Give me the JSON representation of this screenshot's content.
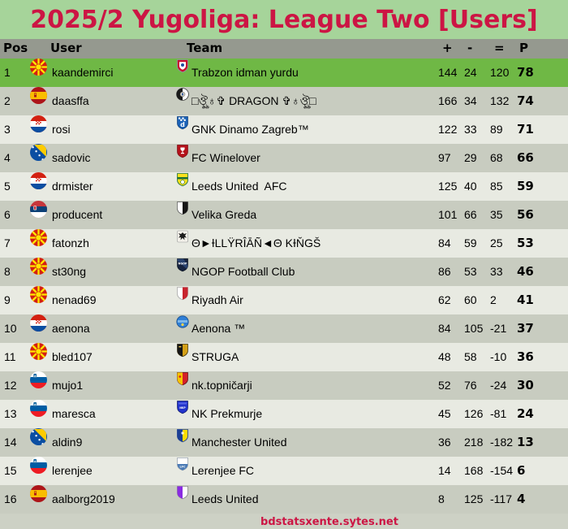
{
  "title": "2025/2 Yugoliga: League Two [Users]",
  "footer": {
    "link_text": "bdstatsxente.sytes.net"
  },
  "colors": {
    "title_text": "#cc1544",
    "title_background": "#a6d49a",
    "header_background": "#95998f",
    "highlight_row": "#6fb845",
    "row_dark": "#c8ccc0",
    "row_light": "#e8eae2",
    "page_background": "#cdd1c5",
    "footer_text": "#cc1544"
  },
  "table": {
    "headers": {
      "pos": "Pos",
      "user": "User",
      "team": "Team",
      "plus": "+",
      "minus": "-",
      "equals": "=",
      "points": "P"
    },
    "rows": [
      {
        "pos": 1,
        "user": "kaandemirci",
        "flag": "macedonia-flag-icon",
        "team": "Trabzon idman yurdu",
        "badge": "trabzon-badge-icon",
        "plus": 144,
        "minus": 24,
        "equals": 120,
        "points": 78,
        "highlight": true
      },
      {
        "pos": 2,
        "user": "daasffa",
        "flag": "spain-flag-icon",
        "team": "□ঔৣ♁✞ DRAGON ✞♁ঔৣ□",
        "badge": "dragon-badge-icon",
        "plus": 166,
        "minus": 34,
        "equals": 132,
        "points": 74,
        "highlight": false
      },
      {
        "pos": 3,
        "user": "rosi",
        "flag": "croatia-flag-icon",
        "team": "GNK Dinamo Zagreb™",
        "badge": "dinamo-badge-icon",
        "plus": 122,
        "minus": 33,
        "equals": 89,
        "points": 71,
        "highlight": false
      },
      {
        "pos": 4,
        "user": "sadovic",
        "flag": "bosnia-flag-icon",
        "team": "FC Winelover",
        "badge": "winelover-badge-icon",
        "plus": 97,
        "minus": 29,
        "equals": 68,
        "points": 66,
        "highlight": false
      },
      {
        "pos": 5,
        "user": "drmister",
        "flag": "croatia-flag-icon",
        "team": "Leeds United  AFC",
        "badge": "leeds-afc-badge-icon",
        "plus": 125,
        "minus": 40,
        "equals": 85,
        "points": 59,
        "highlight": false
      },
      {
        "pos": 6,
        "user": "producent",
        "flag": "serbia-flag-icon",
        "team": "Velika Greda",
        "badge": "velika-badge-icon",
        "plus": 101,
        "minus": 66,
        "equals": 35,
        "points": 56,
        "highlight": false
      },
      {
        "pos": 7,
        "user": "fatonzh",
        "flag": "macedonia-flag-icon",
        "team": "Θ►ƗLLŸRÎĀÑ◄Θ KƗŇGŠ",
        "badge": "illyrian-badge-icon",
        "plus": 84,
        "minus": 59,
        "equals": 25,
        "points": 53,
        "highlight": false
      },
      {
        "pos": 8,
        "user": "st30ng",
        "flag": "macedonia-flag-icon",
        "team": "NGOP Football Club",
        "badge": "ngop-badge-icon",
        "plus": 86,
        "minus": 53,
        "equals": 33,
        "points": 46,
        "highlight": false
      },
      {
        "pos": 9,
        "user": "nenad69",
        "flag": "macedonia-flag-icon",
        "team": "Riyadh Air",
        "badge": "riyadh-badge-icon",
        "plus": 62,
        "minus": 60,
        "equals": 2,
        "points": 41,
        "highlight": false
      },
      {
        "pos": 10,
        "user": "aenona",
        "flag": "croatia-flag-icon",
        "team": "Aenona ™",
        "badge": "aenona-badge-icon",
        "plus": 84,
        "minus": 105,
        "equals": -21,
        "points": 37,
        "highlight": false
      },
      {
        "pos": 11,
        "user": "bled107",
        "flag": "macedonia-flag-icon",
        "team": "STRUGA",
        "badge": "struga-badge-icon",
        "plus": 48,
        "minus": 58,
        "equals": -10,
        "points": 36,
        "highlight": false
      },
      {
        "pos": 12,
        "user": "mujo1",
        "flag": "slovenia-flag-icon",
        "team": "nk.topničarji",
        "badge": "topnicarji-badge-icon",
        "plus": 52,
        "minus": 76,
        "equals": -24,
        "points": 30,
        "highlight": false
      },
      {
        "pos": 13,
        "user": "maresca",
        "flag": "slovenia-flag-icon",
        "team": "NK Prekmurje",
        "badge": "prekmurje-badge-icon",
        "plus": 45,
        "minus": 126,
        "equals": -81,
        "points": 24,
        "highlight": false
      },
      {
        "pos": 14,
        "user": "aldin9",
        "flag": "bosnia-flag-icon",
        "team": "Manchester United",
        "badge": "manutd-badge-icon",
        "plus": 36,
        "minus": 218,
        "equals": -182,
        "points": 13,
        "highlight": false
      },
      {
        "pos": 15,
        "user": "lerenjee",
        "flag": "slovenia-flag-icon",
        "team": "Lerenjee FC",
        "badge": "lerenjee-badge-icon",
        "plus": 14,
        "minus": 168,
        "equals": -154,
        "points": 6,
        "highlight": false
      },
      {
        "pos": 16,
        "user": "aalborg2019",
        "flag": "spain-flag-icon",
        "team": "Leeds United",
        "badge": "leeds2-badge-icon",
        "plus": 8,
        "minus": 125,
        "equals": -117,
        "points": 4,
        "highlight": false
      }
    ]
  }
}
